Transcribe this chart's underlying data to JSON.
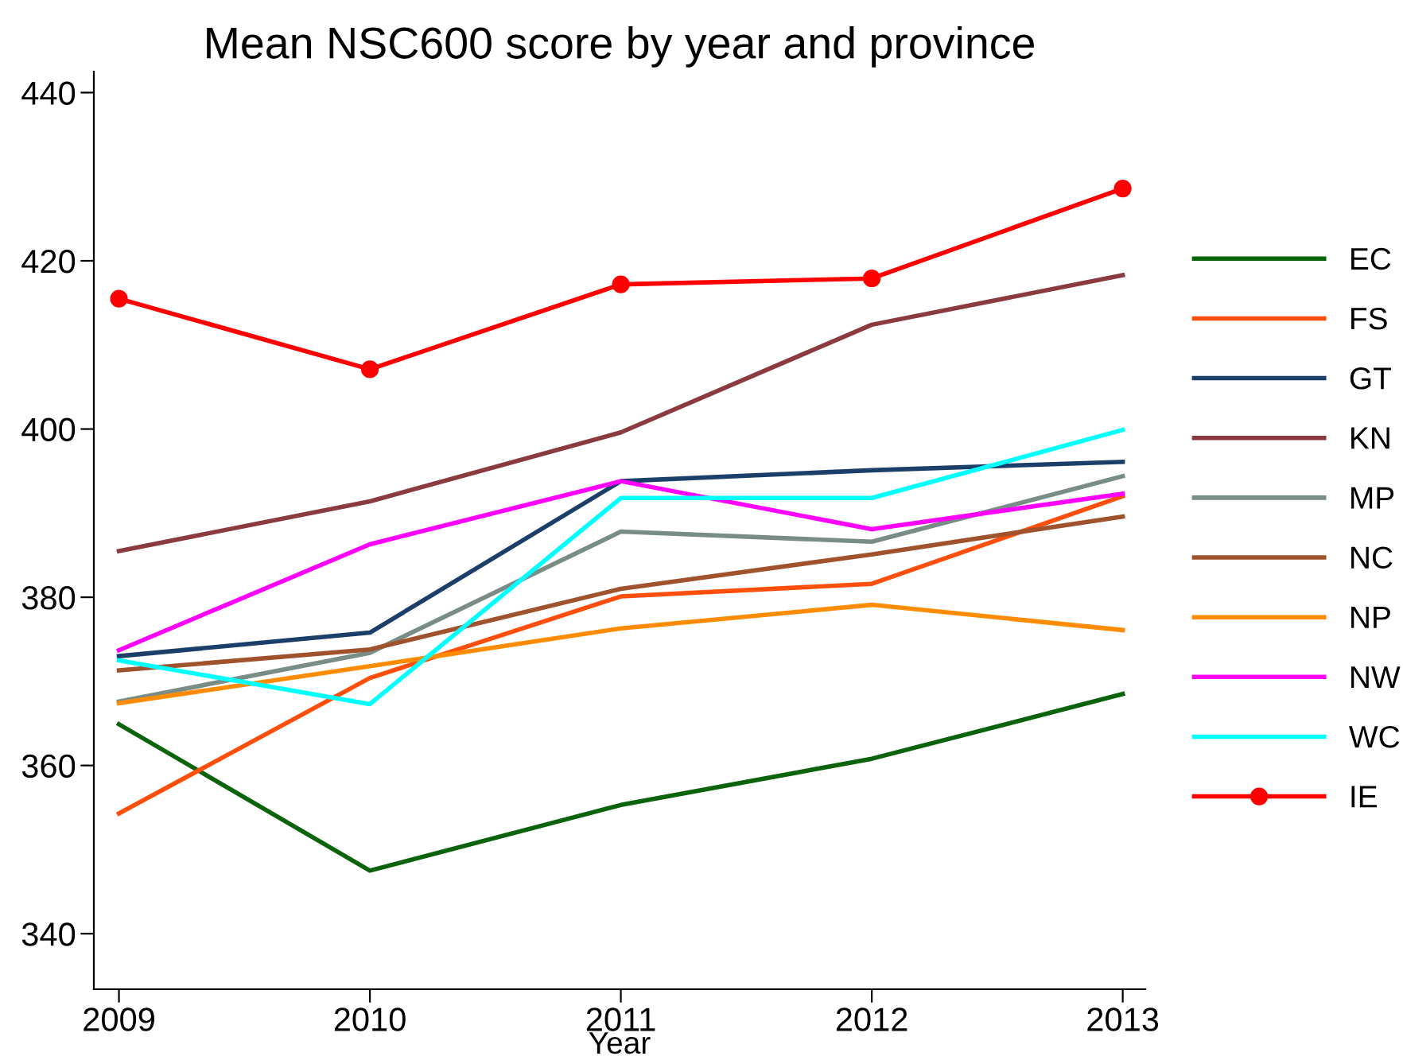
{
  "chart_data": {
    "type": "line",
    "title": "Mean NSC600 score by year and province",
    "xlabel": "Year",
    "x": [
      2009,
      2010,
      2011,
      2012,
      2013
    ],
    "xlim": [
      2008.9,
      2013.09
    ],
    "xticks": [
      2009,
      2010,
      2011,
      2012,
      2013
    ],
    "ylim": [
      333.4,
      442.5
    ],
    "yticks": [
      340,
      360,
      380,
      400,
      420,
      440
    ],
    "grid": false,
    "legend": "right",
    "marker": "none",
    "line_style": "solid",
    "series": [
      {
        "name": "EC",
        "color": "#0b640b",
        "values": [
          364.9,
          347.5,
          355.3,
          360.8,
          368.5
        ]
      },
      {
        "name": "FS",
        "color": "#ff4f0a",
        "values": [
          354.3,
          370.4,
          380.1,
          381.6,
          392.0
        ]
      },
      {
        "name": "GT",
        "color": "#1c3f6a",
        "values": [
          373.0,
          375.8,
          393.8,
          395.1,
          396.1
        ]
      },
      {
        "name": "KN",
        "color": "#8b3a3f",
        "values": [
          385.5,
          391.4,
          399.6,
          412.4,
          418.3
        ]
      },
      {
        "name": "MP",
        "color": "#7a8c86",
        "values": [
          367.6,
          373.4,
          387.8,
          386.6,
          394.4
        ]
      },
      {
        "name": "NC",
        "color": "#a0522d",
        "values": [
          371.3,
          373.8,
          381.0,
          385.1,
          389.6
        ]
      },
      {
        "name": "NP",
        "color": "#ff8c00",
        "values": [
          367.4,
          371.8,
          376.3,
          379.1,
          376.1
        ]
      },
      {
        "name": "NW",
        "color": "#ff00ff",
        "values": [
          373.7,
          386.3,
          393.8,
          388.1,
          392.3
        ]
      },
      {
        "name": "WC",
        "color": "#00ffff",
        "values": [
          372.5,
          367.3,
          391.8,
          391.8,
          399.9
        ]
      },
      {
        "name": "IE",
        "color": "#ff0000",
        "marker": "circle",
        "values": [
          415.5,
          407.1,
          417.2,
          417.9,
          428.6
        ]
      }
    ]
  }
}
